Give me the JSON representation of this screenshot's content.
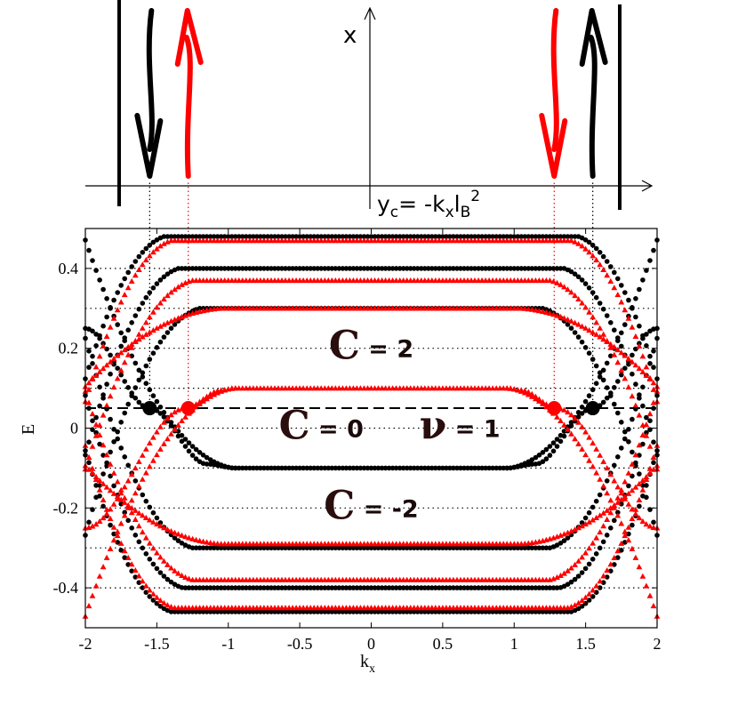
{
  "chart_data": {
    "type": "scatter",
    "title": "",
    "xlabel": "k",
    "xlabel_sub": "x",
    "ylabel": "E",
    "xlim": [
      -2,
      2
    ],
    "ylim": [
      -0.5,
      0.5
    ],
    "xticks": [
      -2,
      -1.5,
      -1,
      -0.5,
      0,
      0.5,
      1,
      1.5,
      2
    ],
    "xtick_labels": [
      "-2",
      "-1.5",
      "-1",
      "-0.5",
      "0",
      "0.5",
      "1",
      "1.5",
      "2"
    ],
    "yticks": [
      -0.4,
      -0.2,
      0,
      0.2,
      0.4
    ],
    "ytick_labels": [
      "-0.4",
      "-0.2",
      "0",
      "0.2",
      "0.4"
    ],
    "horizontal_dotted_levels": [
      -0.4,
      -0.3,
      -0.2,
      -0.1,
      0,
      0.1,
      0.2,
      0.3,
      0.4
    ],
    "fermi_level": 0.05,
    "series": [
      {
        "color": "#000000",
        "marker": "circle",
        "bands": [
          {
            "flat": -0.1,
            "w": 0.97,
            "drop": 0.3,
            "dir": 1,
            "kmin": -2,
            "kmax": 2
          },
          {
            "flat": -0.3,
            "w": 1.25,
            "drop": 0.5,
            "dir": 1,
            "kmin": -2,
            "kmax": 2
          },
          {
            "flat": 0.3,
            "w": 1.2,
            "drop": 0.48,
            "dir": -1,
            "kmin": -2,
            "kmax": 2
          },
          {
            "flat": 0.4,
            "w": 1.35,
            "drop": 0.58,
            "dir": -1,
            "kmin": -2,
            "kmax": 2
          },
          {
            "flat": 0.48,
            "w": 1.45,
            "drop": 0.6,
            "dir": -1,
            "kmin": -2,
            "kmax": 2
          },
          {
            "flat": -0.4,
            "w": 1.32,
            "drop": 0.55,
            "dir": 1,
            "kmin": -2,
            "kmax": 2
          },
          {
            "flat": -0.46,
            "w": 1.4,
            "drop": 0.58,
            "dir": 1,
            "kmin": -2,
            "kmax": 2
          }
        ],
        "edge_segments": [
          {
            "x": [
              -2,
              -1.55,
              -1.15,
              -0.95
            ],
            "y": [
              0.25,
              0.05,
              -0.09,
              -0.1
            ]
          },
          {
            "x": [
              0.95,
              1.15,
              1.55,
              2
            ],
            "y": [
              -0.1,
              -0.09,
              0.05,
              0.25
            ]
          }
        ]
      },
      {
        "color": "#ff0000",
        "marker": "triangle",
        "bands": [
          {
            "flat": 0.1,
            "w": 0.97,
            "drop": 0.3,
            "dir": -1,
            "kmin": -2,
            "kmax": 2
          },
          {
            "flat": 0.3,
            "w": 1.05,
            "drop": 0.12,
            "dir": -1,
            "kmin": -2,
            "kmax": 2
          },
          {
            "flat": 0.37,
            "w": 1.25,
            "drop": 0.45,
            "dir": -1,
            "kmin": -2,
            "kmax": 2
          },
          {
            "flat": 0.47,
            "w": 1.4,
            "drop": 0.58,
            "dir": -1,
            "kmin": -2,
            "kmax": 2
          },
          {
            "flat": -0.29,
            "w": 1.05,
            "drop": 0.12,
            "dir": 1,
            "kmin": -2,
            "kmax": 2
          },
          {
            "flat": -0.38,
            "w": 1.25,
            "drop": 0.45,
            "dir": 1,
            "kmin": -2,
            "kmax": 2
          },
          {
            "flat": -0.45,
            "w": 1.38,
            "drop": 0.55,
            "dir": 1,
            "kmin": -2,
            "kmax": 2
          }
        ],
        "edge_segments": [
          {
            "x": [
              -2,
              -1.3,
              -1.05,
              -0.95
            ],
            "y": [
              -0.25,
              0.05,
              0.095,
              0.1
            ]
          },
          {
            "x": [
              0.95,
              1.05,
              1.3,
              2
            ],
            "y": [
              0.1,
              0.095,
              0.05,
              -0.25
            ]
          }
        ]
      }
    ],
    "fermi_points": [
      {
        "x": -1.55,
        "y": 0.05,
        "color": "#000000"
      },
      {
        "x": -1.28,
        "y": 0.05,
        "color": "#ff0000"
      },
      {
        "x": 1.28,
        "y": 0.05,
        "color": "#ff0000"
      },
      {
        "x": 1.55,
        "y": 0.05,
        "color": "#000000"
      }
    ],
    "annotations": [
      {
        "id": "c2",
        "symbol": "C",
        "text": " = 2",
        "x": 0.0,
        "y": 0.2
      },
      {
        "id": "c0",
        "symbol": "C",
        "text": " = 0",
        "x": -0.35,
        "y": 0.0
      },
      {
        "id": "nu1",
        "symbol": "ν",
        "text": " = 1",
        "x": 0.62,
        "y": 0.0
      },
      {
        "id": "cm2",
        "symbol": "C",
        "text": " = -2",
        "x": 0.0,
        "y": -0.2
      }
    ],
    "real_space": {
      "axis_x_label": "x",
      "axis_y_label_html": "y_c = -k_x l_B^2",
      "axis_y_text": "y",
      "axis_y_sub": "c",
      "axis_y_eq": "= -k",
      "axis_y_sub2": "x",
      "axis_y_l": "l",
      "axis_y_sub3": "B",
      "axis_y_sup": "2",
      "arrows": [
        {
          "color": "#000000",
          "direction": "down",
          "kx": -1.55
        },
        {
          "color": "#ff0000",
          "direction": "up",
          "kx": -1.28
        },
        {
          "color": "#ff0000",
          "direction": "down",
          "kx": 1.28
        },
        {
          "color": "#000000",
          "direction": "up",
          "kx": 1.55
        }
      ]
    }
  }
}
